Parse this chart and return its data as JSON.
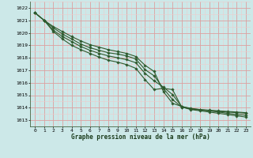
{
  "title": "Graphe pression niveau de la mer (hPa)",
  "bg_color": "#cce8e8",
  "grid_color_major": "#dda0a0",
  "grid_color_minor": "#eecccc",
  "line_color": "#2d5a2d",
  "xlim": [
    -0.5,
    23.5
  ],
  "ylim": [
    1012.5,
    1022.5
  ],
  "yticks": [
    1013,
    1014,
    1015,
    1016,
    1017,
    1018,
    1019,
    1020,
    1021,
    1022
  ],
  "xticks": [
    0,
    1,
    2,
    3,
    4,
    5,
    6,
    7,
    8,
    9,
    10,
    11,
    12,
    13,
    14,
    15,
    16,
    17,
    18,
    19,
    20,
    21,
    22,
    23
  ],
  "series": [
    [
      1021.6,
      1021.0,
      1020.5,
      1020.1,
      1019.7,
      1019.35,
      1019.05,
      1018.85,
      1018.65,
      1018.5,
      1018.35,
      1018.1,
      1017.4,
      1016.9,
      1015.3,
      1014.35,
      1014.1,
      1013.9,
      1013.85,
      1013.8,
      1013.75,
      1013.7,
      1013.65,
      1013.6
    ],
    [
      1021.6,
      1021.0,
      1020.4,
      1019.9,
      1019.5,
      1019.1,
      1018.8,
      1018.6,
      1018.4,
      1018.3,
      1018.15,
      1017.9,
      1017.05,
      1016.55,
      1015.55,
      1014.65,
      1014.05,
      1013.9,
      1013.8,
      1013.75,
      1013.7,
      1013.65,
      1013.6,
      1013.55
    ],
    [
      1021.6,
      1021.0,
      1020.2,
      1019.7,
      1019.3,
      1018.9,
      1018.6,
      1018.35,
      1018.15,
      1018.0,
      1017.85,
      1017.6,
      1016.75,
      1016.15,
      1015.65,
      1015.05,
      1014.1,
      1013.95,
      1013.85,
      1013.75,
      1013.65,
      1013.55,
      1013.45,
      1013.4
    ],
    [
      1021.6,
      1021.0,
      1020.1,
      1019.5,
      1019.0,
      1018.65,
      1018.35,
      1018.05,
      1017.8,
      1017.65,
      1017.45,
      1017.15,
      1016.25,
      1015.45,
      1015.55,
      1015.45,
      1014.05,
      1013.85,
      1013.75,
      1013.65,
      1013.55,
      1013.45,
      1013.35,
      1013.25
    ]
  ]
}
